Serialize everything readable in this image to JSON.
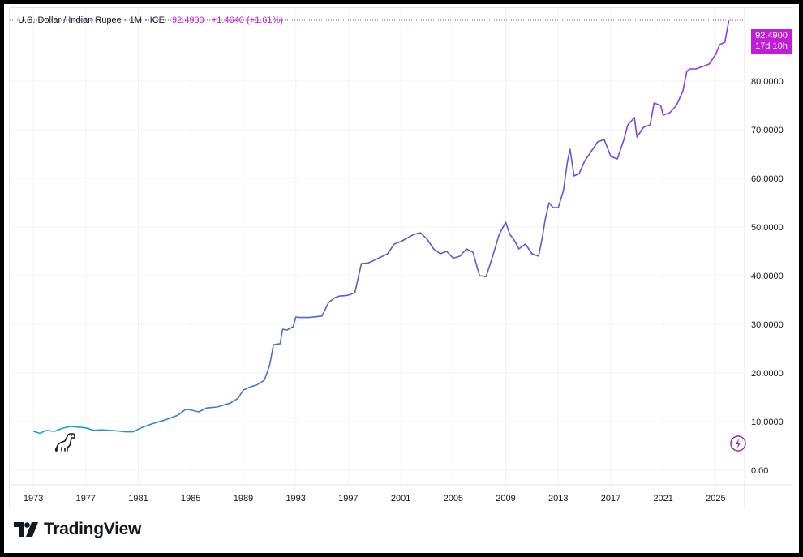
{
  "legend": {
    "title": "U.S. Dollar / Indian Rupee · 1M · ICE",
    "last_price": "92.4900",
    "change": "+1.4640 (+1.61%)"
  },
  "price_tag": {
    "price": "92.4900",
    "countdown": "17d 10h"
  },
  "brand": {
    "name": "TradingView",
    "logo_icon": "tradingview-logo-icon"
  },
  "icons": [
    "dino-icon",
    "flash-icon"
  ],
  "colors": {
    "early_line": "#1aa1d6",
    "mid_line": "#5b5bd6",
    "late_line": "#9932e6",
    "accent": "#c21dd6",
    "grid": "#f0f3fa"
  },
  "chart_data": {
    "type": "line",
    "title": "U.S. Dollar / Indian Rupee · 1M · ICE",
    "xlabel": "",
    "ylabel": "",
    "x_tick_labels": [
      "1973",
      "1977",
      "1981",
      "1985",
      "1989",
      "1993",
      "1997",
      "2001",
      "2005",
      "2009",
      "2013",
      "2017",
      "2021",
      "2025"
    ],
    "y_tick_labels": [
      "0.00",
      "10.0000",
      "20.0000",
      "30.0000",
      "40.0000",
      "50.0000",
      "60.0000",
      "70.0000",
      "80.0000"
    ],
    "ylim": [
      -3,
      95
    ],
    "xlim": [
      1971.2,
      2027.2
    ],
    "grid": true,
    "x": [
      1973.0,
      1973.5,
      1974.0,
      1974.6,
      1975.2,
      1975.8,
      1976.3,
      1977.0,
      1977.6,
      1978.2,
      1978.8,
      1979.4,
      1980.0,
      1980.6,
      1981.2,
      1982.0,
      1983.0,
      1984.0,
      1984.6,
      1985.0,
      1985.6,
      1986.2,
      1987.0,
      1988.0,
      1988.6,
      1989.0,
      1989.6,
      1990.0,
      1990.6,
      1991.0,
      1991.3,
      1991.5,
      1991.8,
      1992.0,
      1992.3,
      1992.8,
      1993.0,
      1993.3,
      1994.0,
      1995.0,
      1995.5,
      1996.0,
      1996.3,
      1996.8,
      1997.0,
      1997.5,
      1998.0,
      1998.5,
      1999.0,
      2000.0,
      2000.5,
      2001.0,
      2002.0,
      2002.5,
      2003.0,
      2003.5,
      2004.0,
      2004.5,
      2005.0,
      2005.5,
      2006.0,
      2006.5,
      2007.0,
      2007.5,
      2008.0,
      2008.5,
      2009.0,
      2009.3,
      2009.6,
      2010.0,
      2010.5,
      2011.0,
      2011.5,
      2011.8,
      2012.0,
      2012.3,
      2012.6,
      2013.0,
      2013.4,
      2013.7,
      2013.9,
      2014.2,
      2014.6,
      2015.0,
      2015.5,
      2016.0,
      2016.5,
      2017.0,
      2017.5,
      2018.0,
      2018.3,
      2018.8,
      2019.0,
      2019.5,
      2020.0,
      2020.3,
      2020.8,
      2021.0,
      2021.5,
      2022.0,
      2022.5,
      2022.8,
      2023.0,
      2023.5,
      2024.0,
      2024.5,
      2025.0,
      2025.3,
      2025.7,
      2026.0
    ],
    "series": [
      {
        "values": [
          8.0,
          7.6,
          8.2,
          8.0,
          8.6,
          9.0,
          8.9,
          8.7,
          8.2,
          8.3,
          8.2,
          8.1,
          7.9,
          7.9,
          8.7,
          9.5,
          10.3,
          11.3,
          12.5,
          12.4,
          12.0,
          12.8,
          13.0,
          13.8,
          14.8,
          16.5,
          17.2,
          17.5,
          18.5,
          21.5,
          25.8,
          25.9,
          26.0,
          29.0,
          28.8,
          29.5,
          31.5,
          31.4,
          31.4,
          31.7,
          34.5,
          35.5,
          35.8,
          35.9,
          36.0,
          36.5,
          42.5,
          42.6,
          43.2,
          44.5,
          46.5,
          47.0,
          48.5,
          48.8,
          47.5,
          45.5,
          44.5,
          45.0,
          43.6,
          44.0,
          45.5,
          44.8,
          40.0,
          39.8,
          44.0,
          48.5,
          51.0,
          48.5,
          47.5,
          45.5,
          46.5,
          44.5,
          44.0,
          48.0,
          51.5,
          55.0,
          54.0,
          54.0,
          57.5,
          63.5,
          66.0,
          60.5,
          61.0,
          63.5,
          65.5,
          67.5,
          68.0,
          64.5,
          64.0,
          68.0,
          71.0,
          72.5,
          68.5,
          70.5,
          71.0,
          75.5,
          75.0,
          73.0,
          73.5,
          75.0,
          78.0,
          82.0,
          82.5,
          82.5,
          83.0,
          83.5,
          85.5,
          87.5,
          88.0,
          92.49
        ]
      }
    ],
    "last_value": 92.49,
    "last_value_label": "92.4900"
  }
}
